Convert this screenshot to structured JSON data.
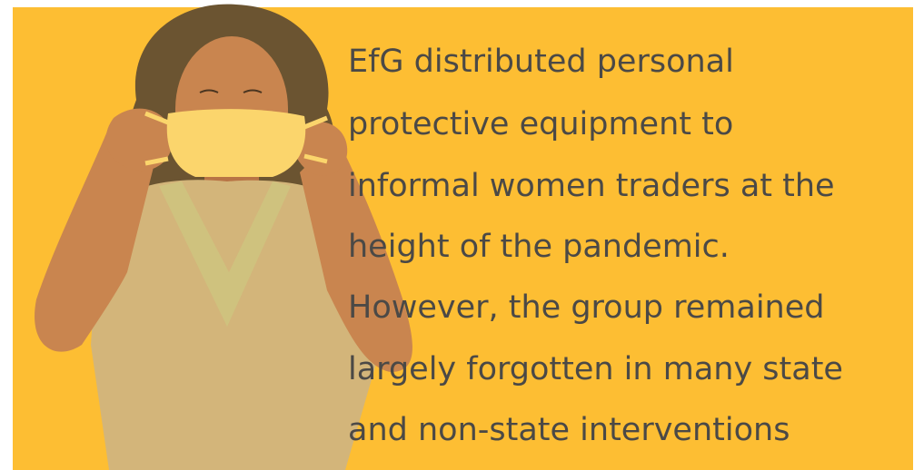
{
  "text_lines": [
    "EfG distributed personal",
    "protective equipment to",
    "informal women traders at the",
    "height of the pandemic.",
    "However, the group remained",
    "largely forgotten in many state",
    "and non-state interventions"
  ]
}
